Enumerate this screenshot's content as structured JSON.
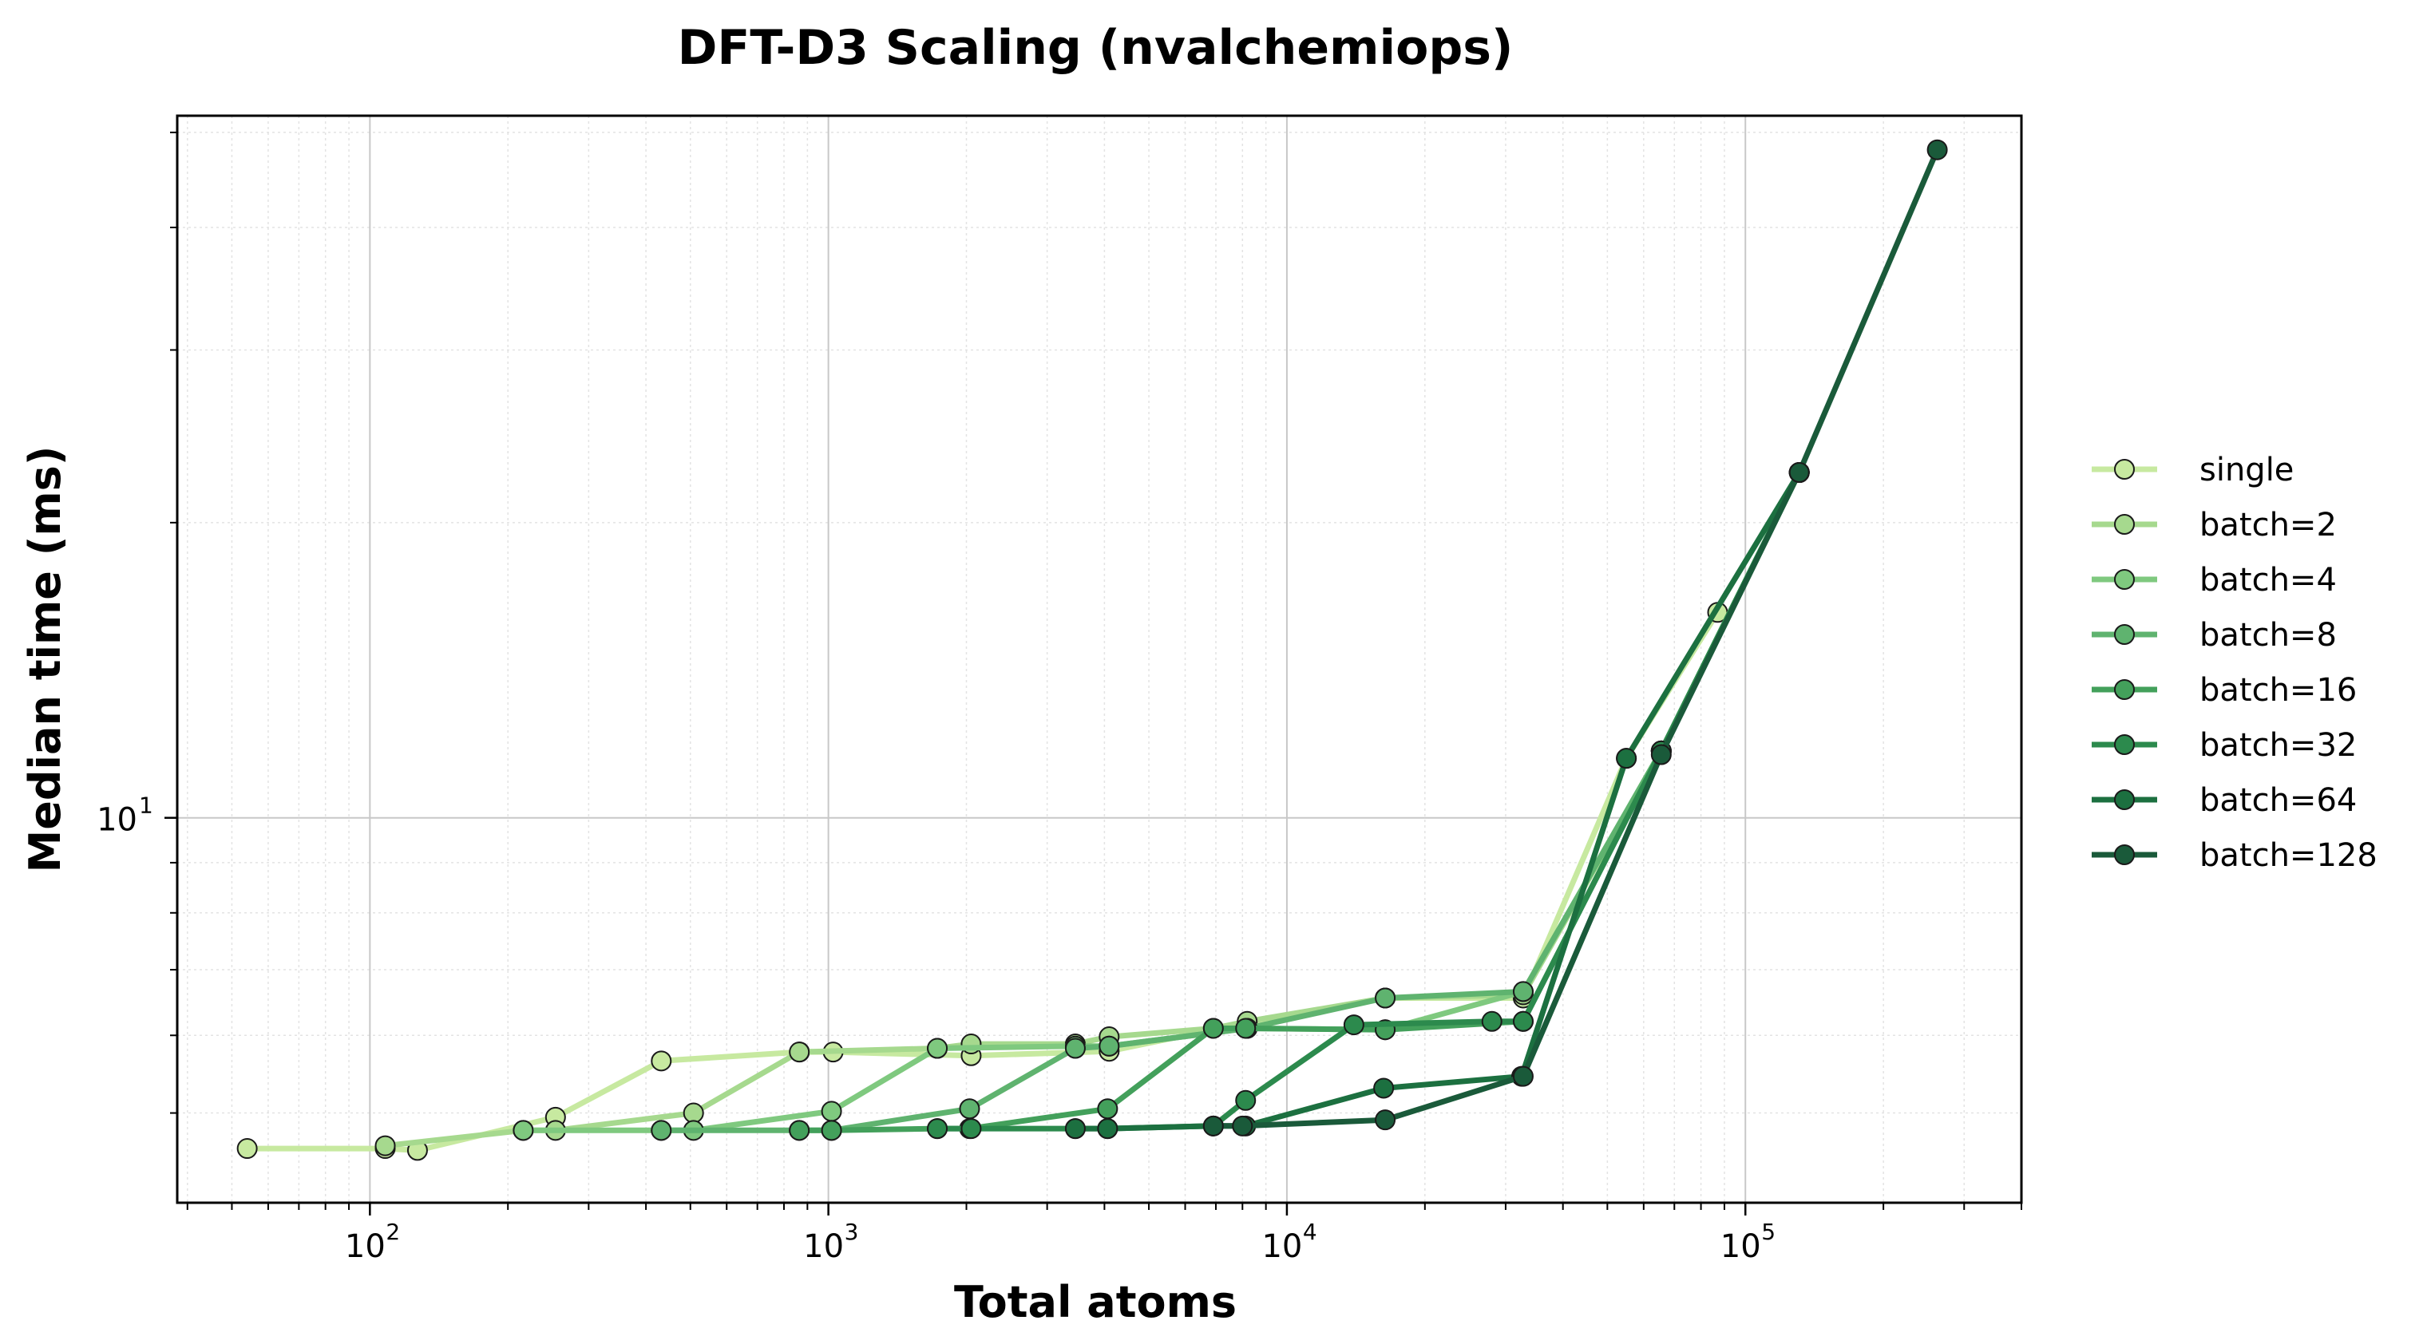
{
  "chart_data": {
    "type": "line",
    "title": "DFT-D3 Scaling (nvalchemiops)",
    "xlabel": "Total atoms",
    "ylabel": "Median time (ms)",
    "xscale": "log",
    "yscale": "log",
    "xlim": [
      38,
      400000
    ],
    "ylim": [
      4.05,
      52
    ],
    "grid": true,
    "legend_position": "right",
    "x_ticks": [
      {
        "base": "10",
        "exp": "2",
        "value": 100
      },
      {
        "base": "10",
        "exp": "3",
        "value": 1000
      },
      {
        "base": "10",
        "exp": "4",
        "value": 10000
      },
      {
        "base": "10",
        "exp": "5",
        "value": 100000
      }
    ],
    "y_ticks": [
      {
        "base": "10",
        "exp": "1",
        "value": 10
      }
    ],
    "series": [
      {
        "name": "single",
        "color": "#c7e9a0",
        "x": [
          54,
          108,
          127,
          254,
          432,
          865,
          1024,
          2048,
          4096,
          8192,
          16384,
          32768,
          55000,
          87000
        ],
        "y": [
          4.6,
          4.6,
          4.58,
          4.95,
          5.65,
          5.77,
          5.77,
          5.72,
          5.78,
          6.18,
          6.55,
          6.55,
          11.5,
          16.2
        ]
      },
      {
        "name": "batch=2",
        "color": "#a6d98e",
        "x": [
          108,
          216,
          254,
          508,
          864,
          1728,
          2048,
          3456,
          4096,
          6912,
          8192,
          16384,
          32768,
          65536,
          131072
        ],
        "y": [
          4.63,
          4.8,
          4.8,
          5.0,
          5.77,
          5.82,
          5.88,
          5.88,
          5.98,
          6.1,
          6.2,
          6.55,
          6.6,
          11.7,
          22.5
        ]
      },
      {
        "name": "batch=4",
        "color": "#7fc97f",
        "x": [
          216,
          432,
          508,
          1016,
          1728,
          3456,
          4096,
          8192,
          16384,
          32768,
          65536,
          131072
        ],
        "y": [
          4.8,
          4.8,
          4.8,
          5.02,
          5.82,
          5.85,
          5.85,
          6.1,
          6.08,
          6.65,
          11.7,
          22.5
        ]
      },
      {
        "name": "batch=8",
        "color": "#5fb36f",
        "x": [
          432,
          864,
          1016,
          2032,
          3456,
          4096,
          8192,
          16384,
          32768,
          65536,
          131072
        ],
        "y": [
          4.8,
          4.8,
          4.8,
          5.05,
          5.82,
          5.85,
          6.1,
          6.55,
          6.65,
          11.7,
          22.5
        ]
      },
      {
        "name": "batch=16",
        "color": "#43a05b",
        "x": [
          864,
          1016,
          1728,
          2032,
          4064,
          6912,
          8128,
          16384,
          32768,
          65536,
          131072
        ],
        "y": [
          4.8,
          4.8,
          4.82,
          4.82,
          5.05,
          6.1,
          6.1,
          6.08,
          6.2,
          11.7,
          22.5
        ]
      },
      {
        "name": "batch=32",
        "color": "#2c8a4d",
        "x": [
          1728,
          2048,
          3456,
          4064,
          6912,
          8128,
          14000,
          28000,
          32768,
          65536,
          131072
        ],
        "y": [
          4.82,
          4.82,
          4.82,
          4.82,
          4.85,
          5.15,
          6.15,
          6.2,
          6.2,
          11.7,
          22.5
        ]
      },
      {
        "name": "batch=64",
        "color": "#1c7040",
        "x": [
          3456,
          4064,
          6912,
          8128,
          16256,
          32512,
          55000,
          131072
        ],
        "y": [
          4.82,
          4.82,
          4.85,
          4.85,
          5.3,
          5.45,
          11.5,
          22.5
        ]
      },
      {
        "name": "batch=128",
        "color": "#1a5a3a",
        "x": [
          6912,
          8000,
          16384,
          32768,
          65536,
          131072,
          262144
        ],
        "y": [
          4.85,
          4.85,
          4.92,
          5.45,
          11.6,
          22.5,
          48.0
        ]
      }
    ]
  }
}
